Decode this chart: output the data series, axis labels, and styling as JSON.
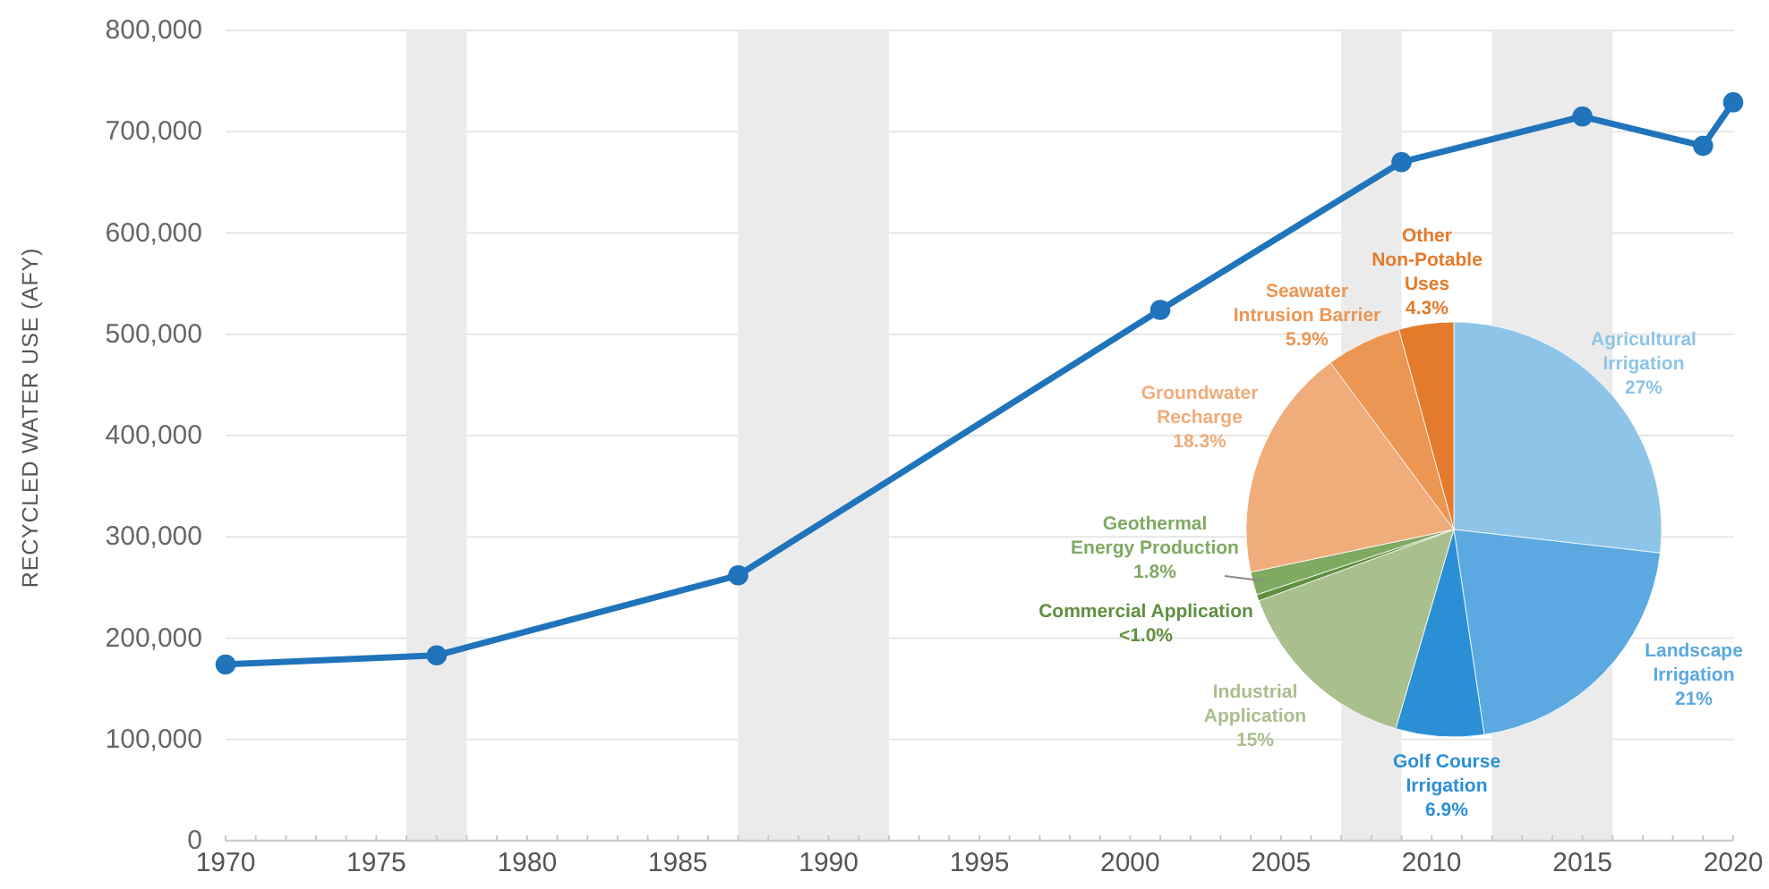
{
  "chart_data": [
    {
      "type": "line",
      "ylabel": "RECYCLED WATER USE (AFY)",
      "x": [
        1970,
        1977,
        1987,
        2001,
        2009,
        2015,
        2019,
        2020
      ],
      "values": [
        174000,
        183000,
        262000,
        524000,
        670000,
        715000,
        686000,
        729000
      ],
      "color": "#1f74bb",
      "marker": "circle",
      "line_style": "solid",
      "xlim": [
        1970,
        2020
      ],
      "xticks": [
        1970,
        {
          "value": 1971,
          "label": null
        },
        {
          "value": 1972,
          "label": null
        },
        {
          "value": 1973,
          "label": null
        },
        {
          "value": 1974,
          "label": null
        },
        1975,
        {
          "value": 1976,
          "label": null
        },
        {
          "value": 1977,
          "label": null
        },
        {
          "value": 1978,
          "label": null
        },
        {
          "value": 1979,
          "label": null
        },
        1980,
        {
          "value": 1981,
          "label": null
        },
        {
          "value": 1982,
          "label": null
        },
        {
          "value": 1983,
          "label": null
        },
        {
          "value": 1984,
          "label": null
        },
        1985,
        {
          "value": 1986,
          "label": null
        },
        {
          "value": 1987,
          "label": null
        },
        {
          "value": 1988,
          "label": null
        },
        {
          "value": 1989,
          "label": null
        },
        1990,
        {
          "value": 1991,
          "label": null
        },
        {
          "value": 1992,
          "label": null
        },
        {
          "value": 1993,
          "label": null
        },
        {
          "value": 1994,
          "label": null
        },
        1995,
        {
          "value": 1996,
          "label": null
        },
        {
          "value": 1997,
          "label": null
        },
        {
          "value": 1998,
          "label": null
        },
        {
          "value": 1999,
          "label": null
        },
        2000,
        {
          "value": 2001,
          "label": null
        },
        {
          "value": 2002,
          "label": null
        },
        {
          "value": 2003,
          "label": null
        },
        {
          "value": 2004,
          "label": null
        },
        2005,
        {
          "value": 2006,
          "label": null
        },
        {
          "value": 2007,
          "label": null
        },
        {
          "value": 2008,
          "label": null
        },
        {
          "value": 2009,
          "label": null
        },
        2010,
        {
          "value": 2011,
          "label": null
        },
        {
          "value": 2012,
          "label": null
        },
        {
          "value": 2013,
          "label": null
        },
        {
          "value": 2014,
          "label": null
        },
        2015,
        {
          "value": 2016,
          "label": null
        },
        {
          "value": 2017,
          "label": null
        },
        {
          "value": 2018,
          "label": null
        },
        {
          "value": 2019,
          "label": null
        },
        2020
      ],
      "ylim": [
        0,
        800000
      ],
      "yticks": [
        0,
        {
          "value": 100000,
          "label": "100,000"
        },
        {
          "value": 200000,
          "label": "200,000"
        },
        {
          "value": 300000,
          "label": "300,000"
        },
        {
          "value": 400000,
          "label": "400,000"
        },
        {
          "value": 500000,
          "label": "500,000"
        },
        {
          "value": 600000,
          "label": "600,000"
        },
        {
          "value": 700000,
          "label": "700,000"
        },
        {
          "value": 800000,
          "label": "800,000"
        }
      ],
      "grid": "y",
      "bands": [
        {
          "axis": "x",
          "from": 1976,
          "to": 1978,
          "color": "#ebebeb"
        },
        {
          "axis": "x",
          "from": 1987,
          "to": 1992,
          "color": "#ebebeb"
        },
        {
          "axis": "x",
          "from": 2007,
          "to": 2009,
          "color": "#ebebeb"
        },
        {
          "axis": "x",
          "from": 2012,
          "to": 2016,
          "color": "#ebebeb"
        }
      ]
    },
    {
      "type": "pie",
      "categories": [
        "Agricultural Irrigation",
        "Landscape Irrigation",
        "Golf Course Irrigation",
        "Industrial Application",
        "Commercial Application",
        "Geothermal Energy Production",
        "Groundwater Recharge",
        "Seawater Intrusion Barrier",
        "Other Non-Potable Uses"
      ],
      "values": [
        27,
        21,
        6.9,
        15,
        0.5,
        1.8,
        18.3,
        5.9,
        4.3
      ],
      "value_labels": [
        "27%",
        "21%",
        "6.9%",
        "15%",
        "<1.0%",
        "1.8%",
        "18.3%",
        "5.9%",
        "4.3%"
      ],
      "colors": [
        "#8ec4e8",
        "#5ba9e0",
        "#2b8fd6",
        "#a9bf8d",
        "#5f8f3f",
        "#7faa62",
        "#f1ac7b",
        "#ec9653",
        "#e47a2b"
      ]
    }
  ]
}
